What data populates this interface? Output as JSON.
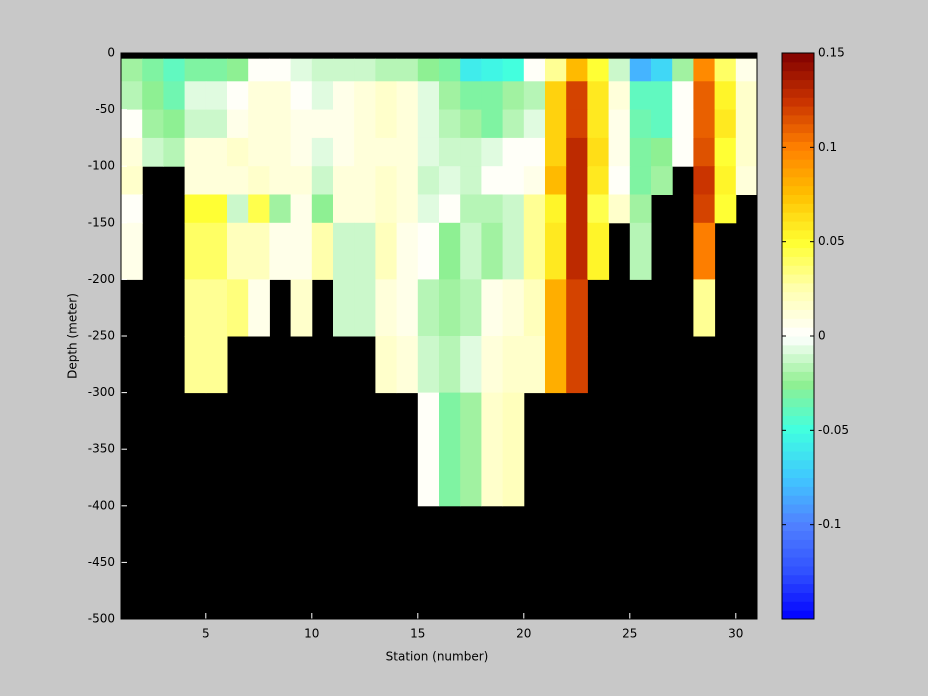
{
  "chart_data": {
    "type": "heatmap",
    "xlabel": "Station (number)",
    "ylabel": "Depth (meter)",
    "x": [
      1,
      2,
      3,
      4,
      5,
      6,
      7,
      8,
      9,
      10,
      11,
      12,
      13,
      14,
      15,
      16,
      17,
      18,
      19,
      20,
      21,
      22,
      23,
      24,
      25,
      26,
      27,
      28,
      29,
      30,
      31
    ],
    "y": [
      0,
      -5,
      -25,
      -50,
      -75,
      -100,
      -125,
      -150,
      -200,
      -250,
      -300,
      -400,
      -500
    ],
    "xlim": [
      1,
      31
    ],
    "xticks": [
      5,
      10,
      15,
      20,
      25,
      30
    ],
    "ylim": [
      -500,
      0
    ],
    "yticks": [
      0,
      -50,
      -100,
      -150,
      -200,
      -250,
      -300,
      -350,
      -400,
      -450,
      -500
    ],
    "clim": [
      -0.15,
      0.15
    ],
    "cticks": [
      -0.1,
      -0.05,
      0,
      0.05,
      0.1,
      0.15
    ],
    "colormap": [
      "#0000ff",
      "#3050ff",
      "#5080ff",
      "#40c8ff",
      "#40ffe0",
      "#90f090",
      "#ffffff",
      "#ffffb0",
      "#ffff30",
      "#ffc000",
      "#ff8000",
      "#c83200",
      "#800000"
    ],
    "nan_color": "#000000",
    "z": [
      [
        null,
        null,
        null,
        null,
        null,
        null,
        null,
        null,
        null,
        null,
        null,
        null,
        null,
        null,
        null,
        null,
        null,
        null,
        null,
        null,
        null,
        null,
        null,
        null,
        null,
        null,
        null,
        null,
        null,
        null
      ],
      [
        -0.02,
        -0.03,
        -0.04,
        -0.03,
        -0.03,
        -0.025,
        0,
        0,
        -0.005,
        -0.01,
        -0.01,
        -0.01,
        -0.015,
        -0.015,
        -0.025,
        -0.03,
        -0.06,
        -0.055,
        -0.05,
        0,
        0.03,
        0.075,
        0.05,
        -0.01,
        -0.08,
        -0.07,
        -0.02,
        0.095,
        0.04,
        0.005
      ],
      [
        -0.015,
        -0.025,
        -0.035,
        -0.005,
        -0.005,
        0,
        0.01,
        0.01,
        0,
        -0.005,
        0.005,
        0.01,
        0.015,
        0.01,
        -0.005,
        -0.02,
        -0.03,
        -0.03,
        -0.02,
        -0.015,
        0.07,
        0.12,
        0.06,
        0.01,
        -0.04,
        -0.04,
        0,
        0.11,
        0.055,
        0.015
      ],
      [
        0,
        -0.02,
        -0.025,
        -0.01,
        -0.01,
        0.005,
        0.01,
        0.01,
        0.005,
        0.005,
        0.005,
        0.01,
        0.015,
        0.01,
        -0.005,
        -0.015,
        -0.02,
        -0.03,
        -0.015,
        -0.005,
        0.07,
        0.12,
        0.06,
        0.005,
        -0.035,
        -0.04,
        0,
        0.11,
        0.06,
        0.015
      ],
      [
        0.01,
        -0.01,
        -0.015,
        0.01,
        0.01,
        0.015,
        0.01,
        0.01,
        0.005,
        -0.005,
        0.005,
        0.01,
        0.01,
        0.01,
        -0.005,
        -0.01,
        -0.01,
        -0.005,
        0,
        0,
        0.07,
        0.13,
        0.065,
        0.005,
        -0.03,
        -0.025,
        0,
        0.115,
        0.05,
        0.015
      ],
      [
        0.015,
        null,
        null,
        0.01,
        0.01,
        0.01,
        0.015,
        0.01,
        0.01,
        -0.01,
        0.01,
        0.01,
        0.015,
        0.01,
        -0.01,
        -0.005,
        -0.01,
        0,
        0,
        0.005,
        0.075,
        0.13,
        0.06,
        0,
        -0.03,
        -0.02,
        null,
        0.125,
        0.055,
        0.01
      ],
      [
        0,
        null,
        null,
        0.05,
        0.05,
        -0.01,
        0.045,
        -0.02,
        0.005,
        -0.025,
        0.01,
        0.01,
        0.015,
        0.01,
        -0.005,
        0,
        -0.015,
        -0.015,
        -0.01,
        0.03,
        0.055,
        0.13,
        0.045,
        0.015,
        -0.02,
        null,
        null,
        0.12,
        0.05,
        null
      ],
      [
        0.005,
        null,
        null,
        0.04,
        0.04,
        0.02,
        0.02,
        0.005,
        0.005,
        0.025,
        -0.01,
        -0.01,
        0.02,
        0.005,
        0,
        -0.025,
        -0.01,
        -0.02,
        -0.01,
        0.03,
        0.06,
        0.13,
        0.055,
        null,
        -0.015,
        null,
        null,
        0.1,
        null,
        null
      ],
      [
        null,
        null,
        null,
        0.03,
        0.03,
        0.035,
        0.005,
        null,
        0.015,
        null,
        -0.01,
        -0.01,
        0.01,
        0.005,
        -0.015,
        -0.02,
        -0.015,
        0.005,
        0.01,
        0.02,
        0.08,
        0.12,
        null,
        null,
        null,
        null,
        null,
        0.03,
        null,
        null
      ],
      [
        null,
        null,
        null,
        0.03,
        0.03,
        null,
        null,
        null,
        null,
        null,
        null,
        null,
        0.015,
        0.01,
        -0.01,
        -0.015,
        -0.005,
        0.01,
        0.015,
        0.015,
        0.08,
        0.12,
        null,
        null,
        null,
        null,
        null,
        null,
        null,
        null
      ],
      [
        null,
        null,
        null,
        null,
        null,
        null,
        null,
        null,
        null,
        null,
        null,
        null,
        null,
        null,
        0,
        -0.03,
        -0.02,
        0.015,
        0.02,
        null,
        null,
        null,
        null,
        null,
        null,
        null,
        null,
        null,
        null,
        null
      ],
      [
        null,
        null,
        null,
        null,
        null,
        null,
        null,
        null,
        null,
        null,
        null,
        null,
        null,
        null,
        null,
        null,
        null,
        null,
        null,
        null,
        null,
        null,
        null,
        null,
        null,
        null,
        null,
        null,
        null,
        null
      ]
    ]
  }
}
